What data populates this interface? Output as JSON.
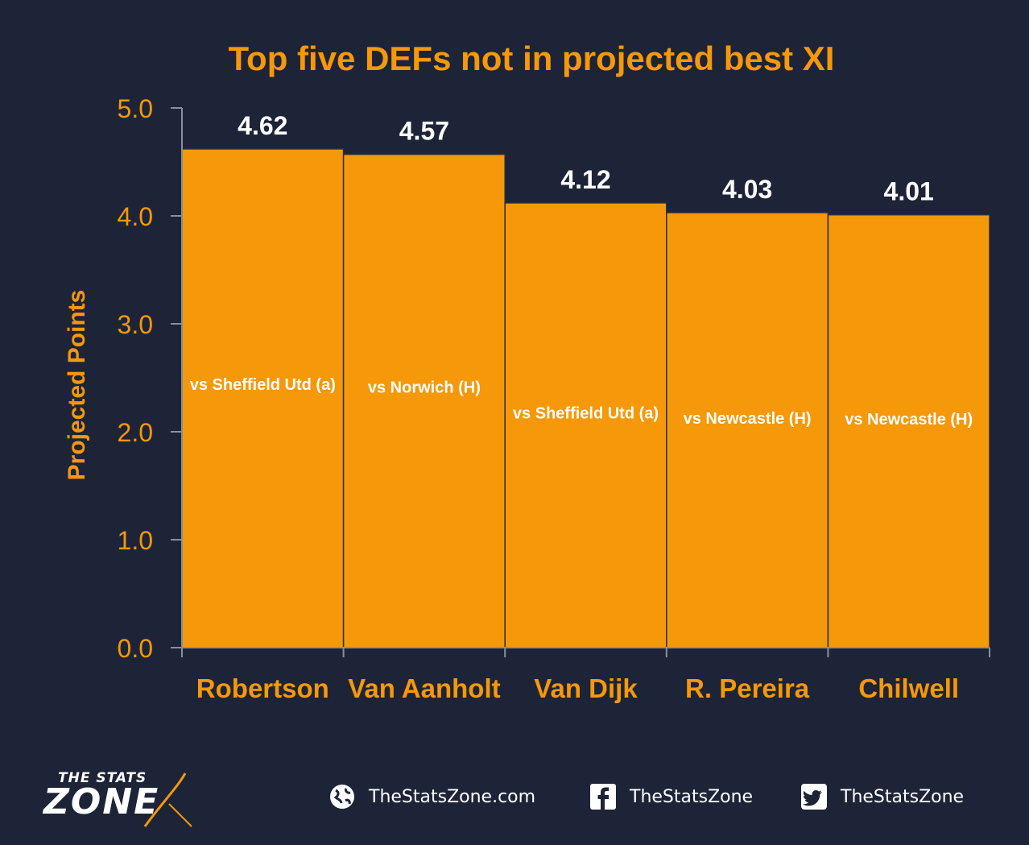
{
  "chart_data": {
    "type": "bar",
    "title": "Top five DEFs not in projected best XI",
    "ylabel": "Projected Points",
    "xlabel": "",
    "ylim": [
      0,
      5
    ],
    "yticks": [
      "0.0",
      "1.0",
      "2.0",
      "3.0",
      "4.0",
      "5.0"
    ],
    "grid": false,
    "categories": [
      "Robertson",
      "Van Aanholt",
      "Van Dijk",
      "R. Pereira",
      "Chilwell"
    ],
    "values": [
      4.62,
      4.57,
      4.12,
      4.03,
      4.01
    ],
    "value_labels": [
      "4.62",
      "4.57",
      "4.12",
      "4.03",
      "4.01"
    ],
    "annotations": [
      "vs Sheffield Utd (a)",
      "vs Norwich (H)",
      "vs Sheffield Utd (a)",
      "vs Newcastle (H)",
      "vs Newcastle (H)"
    ],
    "colors": {
      "bar": "#f5980a",
      "text": "#f5980a",
      "value_label": "#ffffff",
      "background": "#1d2438",
      "axis": "#8a8f9c"
    }
  },
  "footer": {
    "logo_top": "THE STATS",
    "logo_bottom": "ZONE",
    "links": [
      {
        "icon": "globe-icon",
        "label": "TheStatsZone.com"
      },
      {
        "icon": "facebook-icon",
        "label": "TheStatsZone"
      },
      {
        "icon": "twitter-icon",
        "label": "TheStatsZone"
      }
    ]
  }
}
